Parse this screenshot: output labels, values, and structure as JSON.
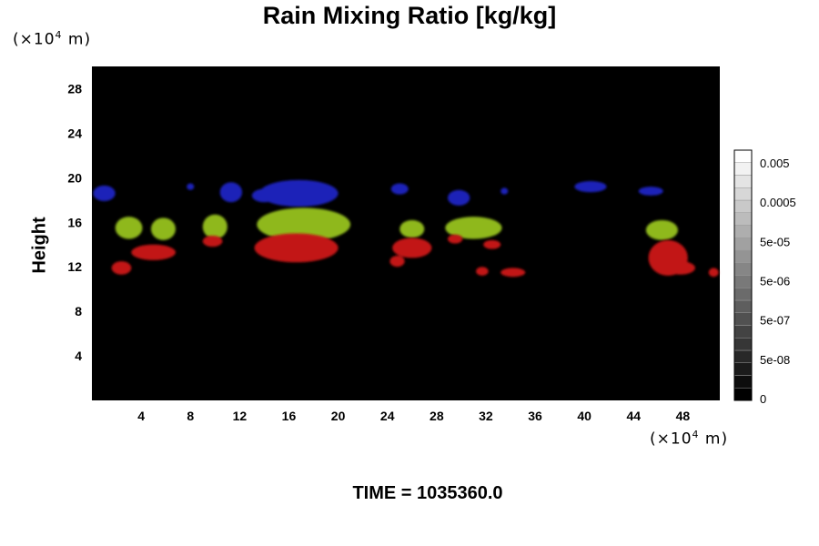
{
  "chart_data": {
    "type": "heatmap",
    "title": "Rain Mixing Ratio [kg/kg]",
    "xlabel": "",
    "ylabel": "Height",
    "x_unit_label": "(×10",
    "x_unit_exp": "4",
    "x_unit_suffix": " m)",
    "y_unit_label": "(×10",
    "y_unit_exp": "4",
    "y_unit_suffix": " m)",
    "xlim": [
      0,
      51
    ],
    "ylim": [
      0,
      30
    ],
    "x_ticks": [
      4,
      8,
      12,
      16,
      20,
      24,
      28,
      32,
      36,
      40,
      44,
      48
    ],
    "y_ticks": [
      4,
      8,
      12,
      16,
      20,
      24,
      28
    ],
    "background_color": "#000000",
    "grid": false,
    "colorbar": {
      "labels": [
        "0",
        "5e-08",
        "5e-07",
        "5e-06",
        "5e-05",
        "0.0005",
        "0.005"
      ],
      "levels": 20,
      "color_min": "#000000",
      "color_max": "#ffffff"
    },
    "features": [
      {
        "color": "#1a22b8",
        "blobs": [
          {
            "x": 1.0,
            "y": 18.6,
            "rx": 0.9,
            "ry": 0.7
          },
          {
            "x": 8.0,
            "y": 19.2,
            "rx": 0.3,
            "ry": 0.3
          },
          {
            "x": 11.3,
            "y": 18.7,
            "rx": 0.9,
            "ry": 0.9
          },
          {
            "x": 16.8,
            "y": 18.6,
            "rx": 3.2,
            "ry": 1.2
          },
          {
            "x": 14.0,
            "y": 18.4,
            "rx": 1.0,
            "ry": 0.6
          },
          {
            "x": 25.0,
            "y": 19.0,
            "rx": 0.7,
            "ry": 0.5
          },
          {
            "x": 29.8,
            "y": 18.2,
            "rx": 0.9,
            "ry": 0.7
          },
          {
            "x": 33.5,
            "y": 18.8,
            "rx": 0.3,
            "ry": 0.3
          },
          {
            "x": 40.5,
            "y": 19.2,
            "rx": 1.3,
            "ry": 0.5
          },
          {
            "x": 45.4,
            "y": 18.8,
            "rx": 1.0,
            "ry": 0.4
          }
        ]
      },
      {
        "color": "#8fb81e",
        "blobs": [
          {
            "x": 3.0,
            "y": 15.5,
            "rx": 1.1,
            "ry": 1.0
          },
          {
            "x": 5.8,
            "y": 15.4,
            "rx": 1.0,
            "ry": 1.0
          },
          {
            "x": 10.0,
            "y": 15.6,
            "rx": 1.0,
            "ry": 1.1
          },
          {
            "x": 17.2,
            "y": 15.8,
            "rx": 3.8,
            "ry": 1.5
          },
          {
            "x": 26.0,
            "y": 15.4,
            "rx": 1.0,
            "ry": 0.8
          },
          {
            "x": 31.0,
            "y": 15.5,
            "rx": 2.3,
            "ry": 1.0
          },
          {
            "x": 46.3,
            "y": 15.3,
            "rx": 1.3,
            "ry": 0.9
          }
        ]
      },
      {
        "color": "#c21414",
        "blobs": [
          {
            "x": 2.4,
            "y": 11.9,
            "rx": 0.8,
            "ry": 0.6
          },
          {
            "x": 5.0,
            "y": 13.3,
            "rx": 1.8,
            "ry": 0.7
          },
          {
            "x": 9.8,
            "y": 14.3,
            "rx": 0.8,
            "ry": 0.5
          },
          {
            "x": 16.6,
            "y": 13.7,
            "rx": 3.4,
            "ry": 1.3
          },
          {
            "x": 26.0,
            "y": 13.7,
            "rx": 1.6,
            "ry": 0.9
          },
          {
            "x": 24.8,
            "y": 12.5,
            "rx": 0.6,
            "ry": 0.5
          },
          {
            "x": 29.5,
            "y": 14.5,
            "rx": 0.6,
            "ry": 0.4
          },
          {
            "x": 32.5,
            "y": 14.0,
            "rx": 0.7,
            "ry": 0.4
          },
          {
            "x": 31.7,
            "y": 11.6,
            "rx": 0.5,
            "ry": 0.4
          },
          {
            "x": 34.2,
            "y": 11.5,
            "rx": 1.0,
            "ry": 0.4
          },
          {
            "x": 46.8,
            "y": 12.8,
            "rx": 1.6,
            "ry": 1.6
          },
          {
            "x": 47.8,
            "y": 11.9,
            "rx": 1.2,
            "ry": 0.6
          },
          {
            "x": 50.5,
            "y": 11.5,
            "rx": 0.4,
            "ry": 0.4
          }
        ]
      }
    ]
  },
  "time_label": "TIME = 1035360.0"
}
